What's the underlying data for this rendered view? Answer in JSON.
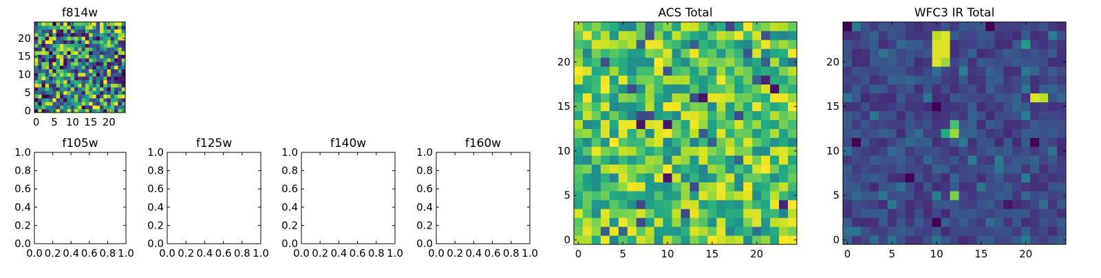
{
  "chart_data": [
    {
      "type": "heatmap",
      "title": "f814w",
      "xlabel": "",
      "ylabel": "",
      "grid_size": [
        25,
        25
      ],
      "xlim": [
        -0.5,
        24.5
      ],
      "ylim": [
        -0.5,
        24.5
      ],
      "xticks": [
        "0",
        "5",
        "10",
        "15",
        "20"
      ],
      "yticks": [
        "0",
        "5",
        "10",
        "15",
        "20"
      ],
      "colormap": "viridis",
      "value_range": [
        0,
        1
      ],
      "highlights": [],
      "grid": false
    },
    {
      "type": "heatmap",
      "title": "f105w",
      "xlabel": "",
      "ylabel": "",
      "xlim": [
        0,
        1
      ],
      "ylim": [
        0,
        1
      ],
      "xticks": [
        "0.0",
        "0.2",
        "0.4",
        "0.6",
        "0.8",
        "1.0"
      ],
      "yticks": [
        "0.0",
        "0.2",
        "0.4",
        "0.6",
        "0.8",
        "1.0"
      ],
      "empty": true,
      "grid": false
    },
    {
      "type": "heatmap",
      "title": "f125w",
      "xlabel": "",
      "ylabel": "",
      "xlim": [
        0,
        1
      ],
      "ylim": [
        0,
        1
      ],
      "xticks": [
        "0.0",
        "0.2",
        "0.4",
        "0.6",
        "0.8",
        "1.0"
      ],
      "yticks": [
        "0.0",
        "0.2",
        "0.4",
        "0.6",
        "0.8",
        "1.0"
      ],
      "empty": true,
      "grid": false
    },
    {
      "type": "heatmap",
      "title": "f140w",
      "xlabel": "",
      "ylabel": "",
      "xlim": [
        0,
        1
      ],
      "ylim": [
        0,
        1
      ],
      "xticks": [
        "0.0",
        "0.2",
        "0.4",
        "0.6",
        "0.8",
        "1.0"
      ],
      "yticks": [
        "0.0",
        "0.2",
        "0.4",
        "0.6",
        "0.8",
        "1.0"
      ],
      "empty": true,
      "grid": false
    },
    {
      "type": "heatmap",
      "title": "f160w",
      "xlabel": "",
      "ylabel": "",
      "xlim": [
        0,
        1
      ],
      "ylim": [
        0,
        1
      ],
      "xticks": [
        "0.0",
        "0.2",
        "0.4",
        "0.6",
        "0.8",
        "1.0"
      ],
      "yticks": [
        "0.0",
        "0.2",
        "0.4",
        "0.6",
        "0.8",
        "1.0"
      ],
      "empty": true,
      "grid": false
    },
    {
      "type": "heatmap",
      "title": "ACS Total",
      "xlabel": "",
      "ylabel": "",
      "grid_size": [
        25,
        25
      ],
      "xlim": [
        -0.5,
        24.5
      ],
      "ylim": [
        -0.5,
        24.5
      ],
      "xticks": [
        "0",
        "5",
        "10",
        "15",
        "20"
      ],
      "yticks": [
        "0",
        "5",
        "10",
        "15",
        "20"
      ],
      "colormap": "viridis",
      "value_range": [
        0.45,
        1.0
      ],
      "highlights": [
        {
          "x": 7,
          "y": 13,
          "value": 0.05
        },
        {
          "x": 10,
          "y": 13,
          "value": 0.05
        },
        {
          "x": 14,
          "y": 16,
          "value": 0.05
        },
        {
          "x": 22,
          "y": 17,
          "value": 0.05
        },
        {
          "x": 21,
          "y": 18,
          "value": 0.1
        },
        {
          "x": 24,
          "y": 19,
          "value": 0.9
        },
        {
          "x": 10,
          "y": 21,
          "value": 0.95
        },
        {
          "x": 3,
          "y": 15,
          "value": 0.95
        },
        {
          "x": 3,
          "y": 12,
          "value": 0.95
        },
        {
          "x": 19,
          "y": 11,
          "value": 0.95
        },
        {
          "x": 17,
          "y": 10,
          "value": 0.95
        },
        {
          "x": 10,
          "y": 7,
          "value": 0.05
        },
        {
          "x": 23,
          "y": 4,
          "value": 0.1
        },
        {
          "x": 3,
          "y": 3,
          "value": 0.95
        }
      ],
      "grid": false
    },
    {
      "type": "heatmap",
      "title": "WFC3 IR Total",
      "xlabel": "",
      "ylabel": "",
      "grid_size": [
        25,
        25
      ],
      "xlim": [
        -0.5,
        24.5
      ],
      "ylim": [
        -0.5,
        24.5
      ],
      "xticks": [
        "0",
        "5",
        "10",
        "15",
        "20"
      ],
      "yticks": [
        "0",
        "5",
        "10",
        "15",
        "20"
      ],
      "colormap": "viridis",
      "value_range": [
        0.12,
        0.3
      ],
      "highlights": [
        {
          "x": 10,
          "y": 23,
          "value": 0.9
        },
        {
          "x": 11,
          "y": 23,
          "value": 0.95
        },
        {
          "x": 10,
          "y": 22,
          "value": 0.95
        },
        {
          "x": 11,
          "y": 22,
          "value": 0.95
        },
        {
          "x": 10,
          "y": 21,
          "value": 0.95
        },
        {
          "x": 11,
          "y": 21,
          "value": 0.95
        },
        {
          "x": 10,
          "y": 20,
          "value": 0.95
        },
        {
          "x": 11,
          "y": 20,
          "value": 0.85
        },
        {
          "x": 21,
          "y": 16,
          "value": 0.95
        },
        {
          "x": 22,
          "y": 16,
          "value": 0.9
        },
        {
          "x": 12,
          "y": 13,
          "value": 0.7
        },
        {
          "x": 12,
          "y": 12,
          "value": 0.85
        },
        {
          "x": 11,
          "y": 12,
          "value": 0.6
        },
        {
          "x": 12,
          "y": 5,
          "value": 0.8
        },
        {
          "x": 20,
          "y": 22,
          "value": 0.55
        },
        {
          "x": 0,
          "y": 24,
          "value": 0.0
        },
        {
          "x": 16,
          "y": 24,
          "value": 0.0
        },
        {
          "x": 10,
          "y": 15,
          "value": 0.0
        },
        {
          "x": 1,
          "y": 11,
          "value": 0.0
        },
        {
          "x": 21,
          "y": 11,
          "value": 0.0
        },
        {
          "x": 7,
          "y": 7,
          "value": 0.0
        },
        {
          "x": 10,
          "y": 2,
          "value": 0.0
        },
        {
          "x": 18,
          "y": 4,
          "value": 0.05
        }
      ],
      "grid": false
    }
  ]
}
